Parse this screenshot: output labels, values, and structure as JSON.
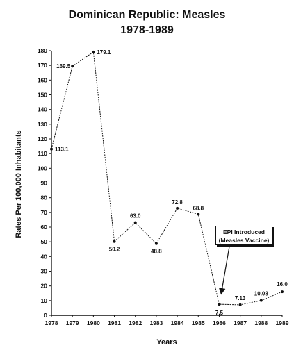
{
  "chart_data": {
    "type": "line",
    "title": "Dominican Republic: Measles",
    "subtitle": "1978-1989",
    "xlabel": "Years",
    "ylabel": "Rates Per 100,000 Inhabitants",
    "ylim": [
      0,
      180
    ],
    "yticks": [
      "0",
      "10",
      "20",
      "30",
      "40",
      "50",
      "60",
      "70",
      "80",
      "90",
      "100",
      "110",
      "120",
      "130",
      "140",
      "150",
      "160",
      "170",
      "180"
    ],
    "categories": [
      "1978",
      "1979",
      "1980",
      "1981",
      "1982",
      "1983",
      "1984",
      "1985",
      "1986",
      "1987",
      "1988",
      "1989"
    ],
    "values": [
      113.1,
      169.5,
      179.1,
      50.2,
      63.0,
      48.8,
      72.8,
      68.8,
      7.5,
      7.13,
      10.08,
      16.0
    ],
    "value_labels": [
      "113.1",
      "169.5",
      "179.1",
      "50.2",
      "63.0",
      "48.8",
      "72.8",
      "68.8",
      "7.5",
      "7.13",
      "10.08",
      "16.0"
    ],
    "annotation": {
      "line1": "EPI Introduced",
      "line2": "(Measles Vaccine)",
      "points_to_category": "1986"
    },
    "grid": false,
    "legend": "none"
  }
}
